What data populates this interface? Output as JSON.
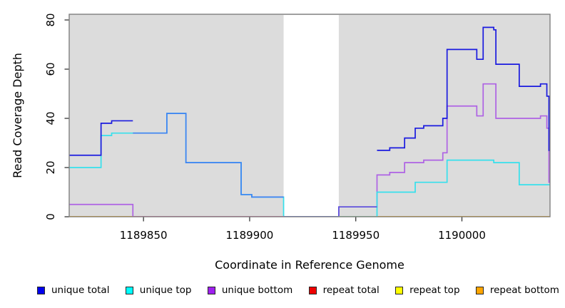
{
  "chart_data": {
    "type": "line",
    "subtype": "step-after",
    "title": "",
    "xlabel": "Coordinate in Reference Genome",
    "ylabel": "Read Coverage Depth",
    "xlim": [
      1189815,
      1190041.5
    ],
    "ylim": [
      0,
      80
    ],
    "x_ticks": [
      1189850,
      1189900,
      1189950,
      1190000
    ],
    "y_ticks": [
      0,
      20,
      40,
      60,
      80
    ],
    "grid": false,
    "legend_position": "bottom",
    "gap_region": {
      "from": 1189916,
      "to": 1189942
    },
    "colors": {
      "panel_bg": "#DCDCDC",
      "panel_border": "#7F7F7F",
      "tick": "#262626",
      "text": "#000000",
      "blue": "#1A1ADF",
      "blue_over_cyan": "#3E82F2",
      "blue_over_purple": "#5A50DC",
      "cyan": "#36E0EC",
      "purple": "#AE62E4",
      "red": "#EE0000",
      "yellow": "#FFFF00",
      "orange": "#FFA500",
      "blend_pink": "#D4679C",
      "blend_green": "#8CC88C",
      "legend_blue": "#0000EE",
      "legend_cyan": "#00FFFF",
      "legend_purple": "#A020F0"
    },
    "series": [
      {
        "name": "repeat total",
        "color_key": "red",
        "steps": [
          [
            1189815,
            0
          ]
        ]
      },
      {
        "name": "repeat top",
        "color_key": "yellow",
        "steps": [
          [
            1189815,
            0
          ]
        ]
      },
      {
        "name": "repeat bottom",
        "color_key": "orange",
        "steps": [
          [
            1189815,
            0
          ]
        ]
      },
      {
        "name": "unique bottom",
        "color_key": "purple",
        "steps": [
          [
            1189815,
            5
          ],
          [
            1189845,
            0
          ],
          [
            1189942,
            4
          ],
          [
            1189960,
            17
          ],
          [
            1189966,
            18
          ],
          [
            1189973,
            22
          ],
          [
            1189982,
            23
          ],
          [
            1189991,
            26
          ],
          [
            1189993,
            45
          ],
          [
            1190007,
            41
          ],
          [
            1190010,
            54
          ],
          [
            1190016,
            40
          ],
          [
            1190037,
            41
          ],
          [
            1190040,
            36
          ],
          [
            1190041,
            14
          ]
        ]
      },
      {
        "name": "unique top",
        "color_key": "cyan",
        "steps": [
          [
            1189815,
            20
          ],
          [
            1189830,
            33
          ],
          [
            1189835,
            34
          ],
          [
            1189861,
            42
          ],
          [
            1189870,
            22
          ],
          [
            1189896,
            9
          ],
          [
            1189901,
            8
          ],
          [
            1189916,
            0
          ],
          [
            1189960,
            10
          ],
          [
            1189978,
            14
          ],
          [
            1189993,
            23
          ],
          [
            1190015,
            22
          ],
          [
            1190027,
            13
          ]
        ]
      },
      {
        "name": "unique total",
        "color_key": "blue",
        "steps": [
          [
            1189815,
            25
          ],
          [
            1189830,
            38
          ],
          [
            1189835,
            39
          ],
          [
            1189845,
            34
          ],
          [
            1189861,
            42
          ],
          [
            1189870,
            22
          ],
          [
            1189896,
            9
          ],
          [
            1189901,
            8
          ],
          [
            1189916,
            0
          ],
          [
            1189942,
            4
          ],
          [
            1189960,
            27
          ],
          [
            1189966,
            28
          ],
          [
            1189973,
            32
          ],
          [
            1189978,
            36
          ],
          [
            1189982,
            37
          ],
          [
            1189991,
            40
          ],
          [
            1189993,
            68
          ],
          [
            1190007,
            64
          ],
          [
            1190010,
            77
          ],
          [
            1190015,
            76
          ],
          [
            1190016,
            62
          ],
          [
            1190027,
            53
          ],
          [
            1190037,
            54
          ],
          [
            1190040,
            49
          ],
          [
            1190041,
            27
          ]
        ],
        "color_spans": [
          {
            "from": 1189815,
            "to": 1189845,
            "color_key": "blue"
          },
          {
            "from": 1189845,
            "to": 1189916,
            "color_key": "blue_over_cyan"
          },
          {
            "from": 1189916,
            "to": 1189960,
            "color_key": "blue_over_purple"
          },
          {
            "from": 1189960,
            "to": 1190041.5,
            "color_key": "blue"
          }
        ]
      }
    ],
    "baseline_overlays": [
      {
        "value": 0,
        "from": 1189845,
        "to": 1189916,
        "color_key": "blend_pink"
      },
      {
        "value": 0,
        "from": 1189942,
        "to": 1189960,
        "color_key": "blend_green"
      }
    ],
    "legend": [
      {
        "label": "unique total",
        "color_key": "legend_blue"
      },
      {
        "label": "unique top",
        "color_key": "legend_cyan"
      },
      {
        "label": "unique bottom",
        "color_key": "legend_purple"
      },
      {
        "label": "repeat total",
        "color_key": "red"
      },
      {
        "label": "repeat top",
        "color_key": "yellow"
      },
      {
        "label": "repeat bottom",
        "color_key": "orange"
      }
    ]
  }
}
